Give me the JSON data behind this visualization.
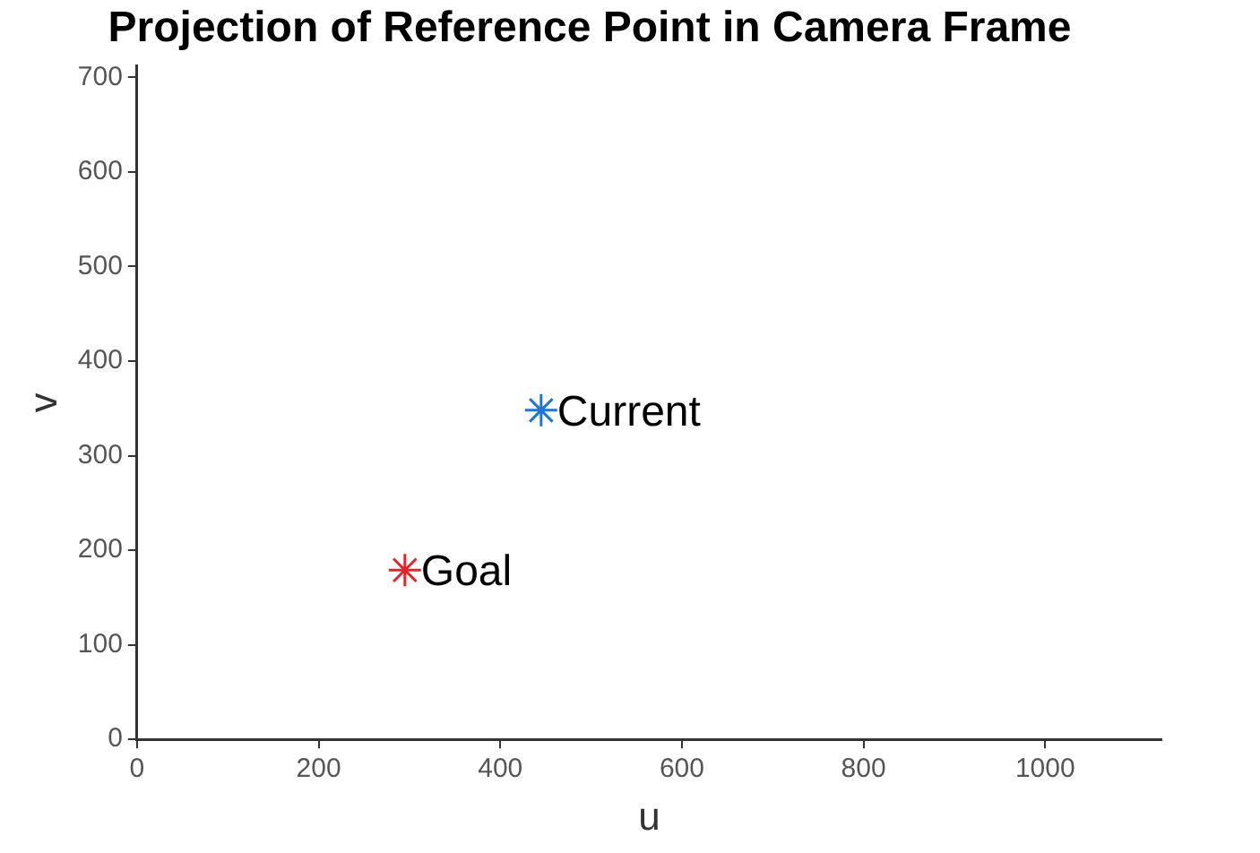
{
  "chart_data": {
    "type": "scatter",
    "title": "Projection of Reference Point in Camera Frame",
    "xlabel": "u",
    "ylabel": "v",
    "series": [
      {
        "name": "Current",
        "color": "#1f77d4",
        "x": [
          445
        ],
        "values": [
          348
        ]
      },
      {
        "name": "Goal",
        "color": "#e8222a",
        "x": [
          295
        ],
        "values": [
          179
        ]
      }
    ],
    "xlim": [
      0,
      1128
    ],
    "xticks": [
      0,
      200,
      400,
      600,
      800,
      1000
    ],
    "ylim": [
      0,
      712
    ],
    "yticks": [
      0,
      100,
      200,
      300,
      400,
      500,
      600,
      700
    ],
    "marker": "cross",
    "grid": false,
    "legend": false
  }
}
